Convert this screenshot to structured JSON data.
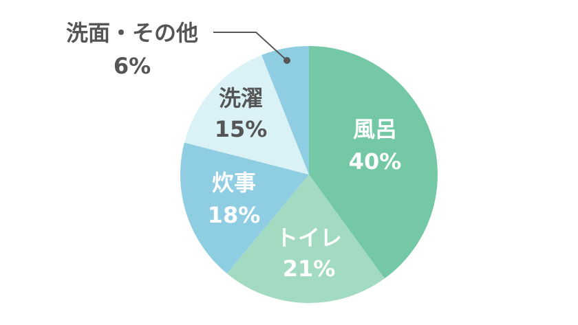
{
  "chart_data": {
    "type": "pie",
    "categories": [
      "風呂",
      "トイレ",
      "炊事",
      "洗濯",
      "洗面・その他"
    ],
    "values": [
      40,
      21,
      18,
      15,
      6
    ],
    "value_labels": [
      "40%",
      "21%",
      "18%",
      "15%",
      "6%"
    ],
    "colors": [
      "#74c8a5",
      "#a3dbc2",
      "#8fcde2",
      "#daf1f6",
      "#8fcde2"
    ]
  }
}
